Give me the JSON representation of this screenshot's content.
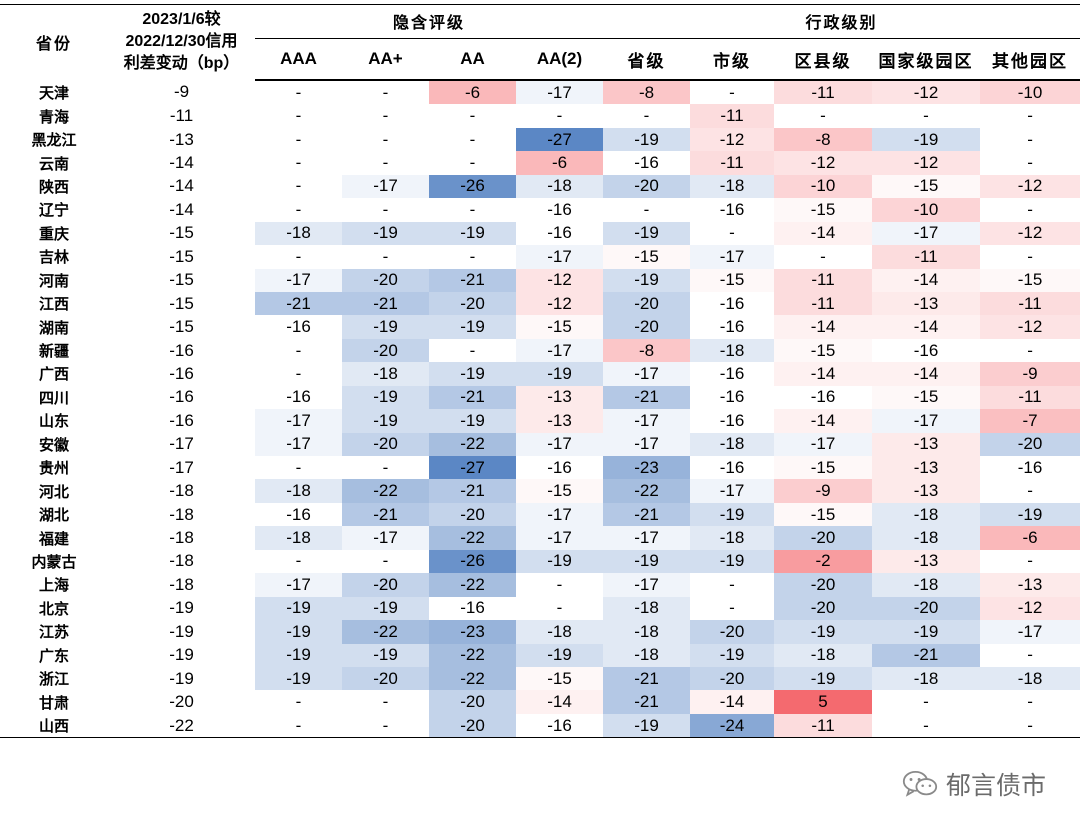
{
  "chart_data": {
    "type": "table",
    "header": {
      "province": "省份",
      "change_lines": [
        "2023/1/6较",
        "2022/12/30信用",
        "利差变动（bp）"
      ],
      "group_implicit": "隐含评级",
      "group_admin": "行政级别",
      "columns": [
        "AAA",
        "AA+",
        "AA",
        "AA(2)",
        "省级",
        "市级",
        "区县级",
        "国家级园区",
        "其他园区"
      ]
    },
    "rows": [
      {
        "province": "天津",
        "change": "-9",
        "cells": [
          "-",
          "-",
          "-6",
          "-17",
          "-8",
          "-",
          "-11",
          "-12",
          "-10"
        ]
      },
      {
        "province": "青海",
        "change": "-11",
        "cells": [
          "-",
          "-",
          "-",
          "-",
          "-",
          "-11",
          "-",
          "-",
          "-"
        ]
      },
      {
        "province": "黑龙江",
        "change": "-13",
        "cells": [
          "-",
          "-",
          "-",
          "-27",
          "-19",
          "-12",
          "-8",
          "-19",
          "-"
        ]
      },
      {
        "province": "云南",
        "change": "-14",
        "cells": [
          "-",
          "-",
          "-",
          "-6",
          "-16",
          "-11",
          "-12",
          "-12",
          "-"
        ]
      },
      {
        "province": "陕西",
        "change": "-14",
        "cells": [
          "-",
          "-17",
          "-26",
          "-18",
          "-20",
          "-18",
          "-10",
          "-15",
          "-12"
        ]
      },
      {
        "province": "辽宁",
        "change": "-14",
        "cells": [
          "-",
          "-",
          "-",
          "-16",
          "-",
          "-16",
          "-15",
          "-10",
          "-"
        ]
      },
      {
        "province": "重庆",
        "change": "-15",
        "cells": [
          "-18",
          "-19",
          "-19",
          "-16",
          "-19",
          "-",
          "-14",
          "-17",
          "-12"
        ]
      },
      {
        "province": "吉林",
        "change": "-15",
        "cells": [
          "-",
          "-",
          "-",
          "-17",
          "-15",
          "-17",
          "-",
          "-11",
          "-"
        ]
      },
      {
        "province": "河南",
        "change": "-15",
        "cells": [
          "-17",
          "-20",
          "-21",
          "-12",
          "-19",
          "-15",
          "-11",
          "-14",
          "-15"
        ]
      },
      {
        "province": "江西",
        "change": "-15",
        "cells": [
          "-21",
          "-21",
          "-20",
          "-12",
          "-20",
          "-16",
          "-11",
          "-13",
          "-11"
        ]
      },
      {
        "province": "湖南",
        "change": "-15",
        "cells": [
          "-16",
          "-19",
          "-19",
          "-15",
          "-20",
          "-16",
          "-14",
          "-14",
          "-12"
        ]
      },
      {
        "province": "新疆",
        "change": "-16",
        "cells": [
          "-",
          "-20",
          "-",
          "-17",
          "-8",
          "-18",
          "-15",
          "-16",
          "-"
        ]
      },
      {
        "province": "广西",
        "change": "-16",
        "cells": [
          "-",
          "-18",
          "-19",
          "-19",
          "-17",
          "-16",
          "-14",
          "-14",
          "-9"
        ]
      },
      {
        "province": "四川",
        "change": "-16",
        "cells": [
          "-16",
          "-19",
          "-21",
          "-13",
          "-21",
          "-16",
          "-16",
          "-15",
          "-11"
        ]
      },
      {
        "province": "山东",
        "change": "-16",
        "cells": [
          "-17",
          "-19",
          "-19",
          "-13",
          "-17",
          "-16",
          "-14",
          "-17",
          "-7"
        ]
      },
      {
        "province": "安徽",
        "change": "-17",
        "cells": [
          "-17",
          "-20",
          "-22",
          "-17",
          "-17",
          "-18",
          "-17",
          "-13",
          "-20"
        ]
      },
      {
        "province": "贵州",
        "change": "-17",
        "cells": [
          "-",
          "-",
          "-27",
          "-16",
          "-23",
          "-16",
          "-15",
          "-13",
          "-16"
        ]
      },
      {
        "province": "河北",
        "change": "-18",
        "cells": [
          "-18",
          "-22",
          "-21",
          "-15",
          "-22",
          "-17",
          "-9",
          "-13",
          "-"
        ]
      },
      {
        "province": "湖北",
        "change": "-18",
        "cells": [
          "-16",
          "-21",
          "-20",
          "-17",
          "-21",
          "-19",
          "-15",
          "-18",
          "-19"
        ]
      },
      {
        "province": "福建",
        "change": "-18",
        "cells": [
          "-18",
          "-17",
          "-22",
          "-17",
          "-17",
          "-18",
          "-20",
          "-18",
          "-6"
        ]
      },
      {
        "province": "内蒙古",
        "change": "-18",
        "cells": [
          "-",
          "-",
          "-26",
          "-19",
          "-19",
          "-19",
          "-2",
          "-13",
          "-"
        ]
      },
      {
        "province": "上海",
        "change": "-18",
        "cells": [
          "-17",
          "-20",
          "-22",
          "-",
          "-17",
          "-",
          "-20",
          "-18",
          "-13"
        ]
      },
      {
        "province": "北京",
        "change": "-19",
        "cells": [
          "-19",
          "-19",
          "-16",
          "-",
          "-18",
          "-",
          "-20",
          "-20",
          "-12"
        ]
      },
      {
        "province": "江苏",
        "change": "-19",
        "cells": [
          "-19",
          "-22",
          "-23",
          "-18",
          "-18",
          "-20",
          "-19",
          "-19",
          "-17"
        ]
      },
      {
        "province": "广东",
        "change": "-19",
        "cells": [
          "-19",
          "-19",
          "-22",
          "-19",
          "-18",
          "-19",
          "-18",
          "-21",
          "-"
        ]
      },
      {
        "province": "浙江",
        "change": "-19",
        "cells": [
          "-19",
          "-20",
          "-22",
          "-15",
          "-21",
          "-20",
          "-19",
          "-18",
          "-18"
        ]
      },
      {
        "province": "甘肃",
        "change": "-20",
        "cells": [
          "-",
          "-",
          "-20",
          "-14",
          "-21",
          "-14",
          "5",
          "-",
          "-"
        ]
      },
      {
        "province": "山西",
        "change": "-22",
        "cells": [
          "-",
          "-",
          "-20",
          "-16",
          "-19",
          "-24",
          "-11",
          "-",
          "-"
        ]
      }
    ],
    "colors": {
      "negative": "#5b87c5",
      "neutral": "#ffffff",
      "positive": "#f46a6f"
    }
  },
  "watermark": {
    "text": "郁言债市",
    "icon": "wechat-icon"
  }
}
